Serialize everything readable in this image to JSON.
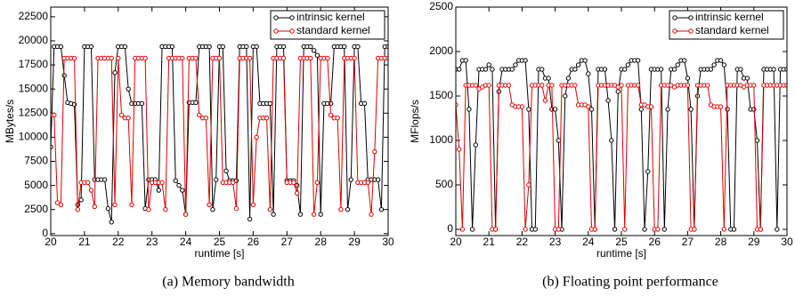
{
  "chart_data": [
    {
      "type": "line",
      "caption": "(a) Memory bandwidth",
      "xlabel": "runtime [s]",
      "ylabel": "MBytes/s",
      "xlim": [
        20,
        30
      ],
      "ylim": [
        -200,
        23500
      ],
      "xticks": [
        20,
        21,
        22,
        23,
        24,
        25,
        26,
        27,
        28,
        29,
        30
      ],
      "yticks": [
        0,
        2500,
        5000,
        7500,
        10000,
        12500,
        15000,
        17500,
        20000,
        22500
      ],
      "legend": "top-right",
      "x": [
        20,
        20.1,
        20.2,
        20.3,
        20.4,
        20.5,
        20.6,
        20.7,
        20.8,
        20.9,
        21,
        21.1,
        21.2,
        21.3,
        21.4,
        21.5,
        21.6,
        21.7,
        21.8,
        21.9,
        22,
        22.1,
        22.2,
        22.3,
        22.4,
        22.5,
        22.6,
        22.7,
        22.8,
        22.9,
        23,
        23.1,
        23.2,
        23.3,
        23.4,
        23.5,
        23.6,
        23.7,
        23.8,
        23.9,
        24,
        24.1,
        24.2,
        24.3,
        24.4,
        24.5,
        24.6,
        24.7,
        24.8,
        24.9,
        25,
        25.1,
        25.2,
        25.3,
        25.4,
        25.5,
        25.6,
        25.7,
        25.8,
        25.9,
        26,
        26.1,
        26.2,
        26.3,
        26.4,
        26.5,
        26.6,
        26.7,
        26.8,
        26.9,
        27,
        27.1,
        27.2,
        27.3,
        27.4,
        27.5,
        27.6,
        27.7,
        27.8,
        27.9,
        28,
        28.1,
        28.2,
        28.3,
        28.4,
        28.5,
        28.6,
        28.7,
        28.8,
        28.9,
        29,
        29.1,
        29.2,
        29.3,
        29.4,
        29.5,
        29.6,
        29.7,
        29.8,
        29.9,
        30
      ],
      "series": [
        {
          "name": "intrinsic kernel",
          "color": "#000000",
          "values": [
            9000,
            19400,
            19400,
            19400,
            16400,
            13600,
            13500,
            13400,
            3000,
            3500,
            19400,
            19400,
            19400,
            5600,
            5600,
            5600,
            5600,
            2600,
            1200,
            16700,
            19400,
            19400,
            19400,
            15000,
            13500,
            13500,
            13500,
            13500,
            2600,
            5600,
            5600,
            5600,
            4500,
            19400,
            19400,
            19400,
            19400,
            5500,
            5000,
            4500,
            2000,
            13600,
            13600,
            13600,
            19400,
            19400,
            19400,
            19400,
            2500,
            5600,
            19400,
            19400,
            6500,
            5500,
            5500,
            5500,
            19400,
            19400,
            19400,
            1500,
            19400,
            19400,
            13500,
            13500,
            13500,
            13500,
            2000,
            19400,
            19400,
            19400,
            5500,
            5500,
            5500,
            5000,
            2000,
            19400,
            19400,
            19400,
            19000,
            18500,
            2000,
            13500,
            13500,
            13500,
            19400,
            19400,
            19400,
            19400,
            2500,
            5600,
            19400,
            19400,
            13500,
            13500,
            5600,
            5600,
            5600,
            5600,
            2500,
            19400,
            19400
          ]
        },
        {
          "name": "standard kernel",
          "color": "#e00000",
          "values": [
            12300,
            12300,
            3200,
            3000,
            18200,
            18200,
            18200,
            18200,
            2500,
            5300,
            5300,
            5300,
            4500,
            2800,
            18200,
            18200,
            18200,
            18200,
            18200,
            3000,
            18200,
            12300,
            12000,
            12000,
            3000,
            18200,
            18200,
            18200,
            18200,
            2500,
            5300,
            5300,
            5300,
            5300,
            2500,
            18200,
            18200,
            18200,
            18200,
            18200,
            2000,
            18200,
            18200,
            18200,
            12300,
            12000,
            12000,
            3000,
            18200,
            18200,
            18200,
            5300,
            5300,
            5300,
            5300,
            2600,
            18200,
            18200,
            18200,
            18200,
            3000,
            10000,
            12000,
            12000,
            12000,
            2500,
            18200,
            18200,
            18200,
            18200,
            5300,
            5300,
            5300,
            4200,
            18200,
            18200,
            18200,
            18200,
            2000,
            5300,
            18200,
            18200,
            18200,
            12300,
            12000,
            12000,
            2500,
            18200,
            18200,
            18200,
            18200,
            5300,
            5300,
            5300,
            5300,
            2000,
            8500,
            18200,
            18200,
            18200,
            18200
          ]
        }
      ]
    },
    {
      "type": "line",
      "caption": "(b) Floating point performance",
      "xlabel": "runtime [s]",
      "ylabel": "MFlops/s",
      "xlim": [
        20,
        30
      ],
      "ylim": [
        -70,
        2500
      ],
      "xticks": [
        20,
        21,
        22,
        23,
        24,
        25,
        26,
        27,
        28,
        29,
        30
      ],
      "yticks": [
        0,
        500,
        1000,
        1500,
        2000,
        2500
      ],
      "legend": "top-right",
      "x": [
        20,
        20.1,
        20.2,
        20.3,
        20.4,
        20.5,
        20.6,
        20.7,
        20.8,
        20.9,
        21,
        21.1,
        21.2,
        21.3,
        21.4,
        21.5,
        21.6,
        21.7,
        21.8,
        21.9,
        22,
        22.1,
        22.2,
        22.3,
        22.4,
        22.5,
        22.6,
        22.7,
        22.8,
        22.9,
        23,
        23.1,
        23.2,
        23.3,
        23.4,
        23.5,
        23.6,
        23.7,
        23.8,
        23.9,
        24,
        24.1,
        24.2,
        24.3,
        24.4,
        24.5,
        24.6,
        24.7,
        24.8,
        24.9,
        25,
        25.1,
        25.2,
        25.3,
        25.4,
        25.5,
        25.6,
        25.7,
        25.8,
        25.9,
        26,
        26.1,
        26.2,
        26.3,
        26.4,
        26.5,
        26.6,
        26.7,
        26.8,
        26.9,
        27,
        27.1,
        27.2,
        27.3,
        27.4,
        27.5,
        27.6,
        27.7,
        27.8,
        27.9,
        28,
        28.1,
        28.2,
        28.3,
        28.4,
        28.5,
        28.6,
        28.7,
        28.8,
        28.9,
        29,
        29.1,
        29.2,
        29.3,
        29.4,
        29.5,
        29.6,
        29.7,
        29.8,
        29.9,
        30
      ],
      "series": [
        {
          "name": "intrinsic kernel",
          "color": "#000000",
          "values": [
            1800,
            1800,
            1900,
            1900,
            1350,
            0,
            950,
            1800,
            1800,
            1800,
            1850,
            1800,
            0,
            1550,
            1800,
            1800,
            1800,
            1800,
            1850,
            1900,
            1900,
            1900,
            1350,
            0,
            0,
            1800,
            1800,
            1700,
            1700,
            1350,
            1350,
            1000,
            0,
            1500,
            1700,
            1800,
            1800,
            1850,
            1900,
            1900,
            1750,
            1350,
            0,
            1800,
            1800,
            1800,
            1450,
            1000,
            0,
            1550,
            1800,
            1800,
            1850,
            1900,
            1900,
            1900,
            1350,
            0,
            650,
            1800,
            1800,
            1800,
            1800,
            0,
            1350,
            1800,
            1800,
            1850,
            1900,
            1900,
            1700,
            1350,
            0,
            1500,
            1800,
            1800,
            1800,
            1800,
            1850,
            1900,
            1900,
            1850,
            1350,
            0,
            0,
            1800,
            1800,
            1700,
            1700,
            1350,
            1350,
            1000,
            0,
            1800,
            1800,
            1800,
            1800,
            0,
            1800,
            1800,
            1800
          ]
        },
        {
          "name": "standard kernel",
          "color": "#e00000",
          "values": [
            1400,
            900,
            0,
            1620,
            1620,
            1620,
            1620,
            1580,
            1600,
            1620,
            1620,
            0,
            0,
            1620,
            1620,
            1620,
            1620,
            1400,
            1380,
            1380,
            1380,
            0,
            500,
            1620,
            1620,
            1620,
            1620,
            1450,
            1620,
            1620,
            0,
            0,
            1620,
            1620,
            1620,
            1620,
            1620,
            1400,
            1400,
            1400,
            1380,
            0,
            0,
            1620,
            1620,
            1620,
            1620,
            1620,
            1620,
            1600,
            1620,
            0,
            1620,
            1620,
            1620,
            1620,
            1400,
            1400,
            1380,
            1380,
            0,
            0,
            1620,
            1620,
            1620,
            1620,
            1600,
            1620,
            1620,
            1620,
            1620,
            0,
            0,
            1620,
            1620,
            1620,
            1620,
            1400,
            1380,
            1380,
            1380,
            0,
            1620,
            1620,
            1620,
            1620,
            1620,
            1600,
            1620,
            1620,
            1620,
            0,
            0,
            1620,
            1620,
            1620,
            1620,
            1620,
            1620,
            1620,
            1620
          ]
        }
      ]
    }
  ]
}
